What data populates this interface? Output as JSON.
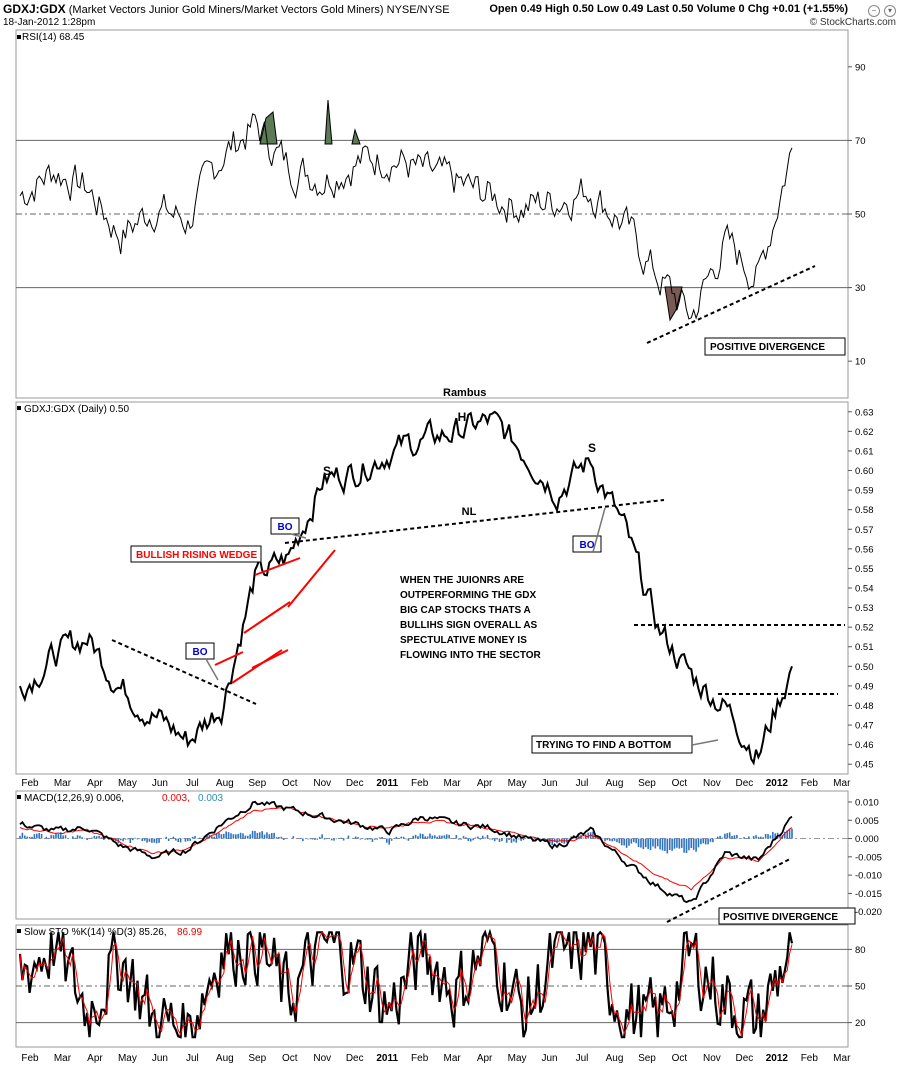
{
  "header": {
    "symbol": "GDXJ:GDX",
    "description": "(Market Vectors Junior Gold Miners/Market Vectors Gold Miners)",
    "exchange": "NYSE/NYSE",
    "date": "18-Jan-2012 1:28pm",
    "quote": "Open 0.49  High 0.50  Low 0.49  Last 0.50  Volume 0  Chg +0.01 (+1.55%)",
    "copyright": "© StockCharts.com"
  },
  "colors": {
    "price": "#000000",
    "signal": "#ff0000",
    "hist": "#2e72c2",
    "overbought": "#5b7a55",
    "oversold": "#7a5a55",
    "annot_red": "#ff0000",
    "annot_blue": "#0000cc"
  },
  "chart_data": [
    {
      "type": "line",
      "title": "RSI(14) 68.45",
      "label": "RSI(14)",
      "last": "68.45",
      "ylim": [
        0,
        100
      ],
      "yticks": [
        "90",
        "70",
        "50",
        "30",
        "10"
      ],
      "reference_lines": [
        70,
        50,
        30
      ],
      "x": [
        "Feb 2010",
        "Mar",
        "Apr",
        "May",
        "Jun",
        "Jul",
        "Aug",
        "Sep",
        "Oct",
        "Nov",
        "Dec",
        "2011",
        "Feb",
        "Mar",
        "Apr",
        "May",
        "Jun",
        "Jul",
        "Aug",
        "Sep",
        "Oct",
        "Nov",
        "Dec",
        "2012"
      ],
      "values": [
        55,
        62,
        57,
        44,
        52,
        48,
        66,
        74,
        63,
        60,
        64,
        66,
        61,
        58,
        55,
        52,
        54,
        57,
        47,
        33,
        22,
        42,
        33,
        68
      ],
      "annotations": [
        {
          "text": "POSITIVE DIVERGENCE",
          "kind": "box"
        }
      ]
    },
    {
      "type": "line",
      "title": "Rambus",
      "label": "GDXJ:GDX (Daily) 0.50",
      "last": "0.50",
      "ylim": [
        0.445,
        0.635
      ],
      "yticks": [
        "0.63",
        "0.62",
        "0.61",
        "0.60",
        "0.59",
        "0.58",
        "0.57",
        "0.56",
        "0.55",
        "0.54",
        "0.53",
        "0.52",
        "0.51",
        "0.50",
        "0.49",
        "0.48",
        "0.47",
        "0.46",
        "0.45"
      ],
      "xticks": [
        "Feb",
        "Mar",
        "Apr",
        "May",
        "Jun",
        "Jul",
        "Aug",
        "Sep",
        "Oct",
        "Nov",
        "Dec",
        "2011",
        "Feb",
        "Mar",
        "Apr",
        "May",
        "Jun",
        "Jul",
        "Aug",
        "Sep",
        "Oct",
        "Nov",
        "Dec",
        "2012",
        "Feb",
        "Mar"
      ],
      "x": [
        "Feb 2010",
        "Mar",
        "Apr",
        "May",
        "Jun",
        "Jul",
        "Aug",
        "Sep",
        "Oct",
        "Nov",
        "Dec",
        "2011",
        "Feb",
        "Mar",
        "Apr",
        "May",
        "Jun",
        "Jul",
        "Aug",
        "Sep",
        "Oct",
        "Nov",
        "Dec",
        "2012"
      ],
      "values": [
        0.49,
        0.505,
        0.515,
        0.49,
        0.475,
        0.462,
        0.48,
        0.545,
        0.555,
        0.595,
        0.6,
        0.61,
        0.615,
        0.62,
        0.625,
        0.61,
        0.59,
        0.605,
        0.57,
        0.52,
        0.495,
        0.48,
        0.455,
        0.5
      ],
      "annotations": [
        {
          "text": "S",
          "kind": "label"
        },
        {
          "text": "H",
          "kind": "label"
        },
        {
          "text": "S",
          "kind": "label"
        },
        {
          "text": "NL",
          "kind": "label"
        },
        {
          "text": "BO",
          "kind": "box"
        },
        {
          "text": "BO",
          "kind": "box"
        },
        {
          "text": "BO",
          "kind": "box"
        },
        {
          "text": "BULLISH RISING WEDGE",
          "kind": "box"
        },
        {
          "text": "WHEN THE JUIONRS ARE\nOUTPERFORMING THE GDX\nBIG CAP STOCKS THATS A\nBULLIHS SIGN OVERALL AS\nSPECTULATIVE MONEY IS\nFLOWING INTO THE SECTOR",
          "kind": "text"
        },
        {
          "text": "TRYING TO FIND A BOTTOM",
          "kind": "box"
        }
      ]
    },
    {
      "type": "line",
      "title": "MACD(12,26,9) 0.006, 0.003, 0.003",
      "label": "MACD(12,26,9) 0.006,",
      "signal_label": "0.003,",
      "hist_label": "0.003",
      "ylim": [
        -0.022,
        0.013
      ],
      "yticks": [
        "0.010",
        "0.005",
        "0.000",
        "-0.005",
        "-0.010",
        "-0.015",
        "-0.020"
      ],
      "x": [
        "Feb 2010",
        "Mar",
        "Apr",
        "May",
        "Jun",
        "Jul",
        "Aug",
        "Sep",
        "Oct",
        "Nov",
        "Dec",
        "2011",
        "Feb",
        "Mar",
        "Apr",
        "May",
        "Jun",
        "Jul",
        "Aug",
        "Sep",
        "Oct",
        "Nov",
        "Dec",
        "2012"
      ],
      "series": [
        {
          "name": "MACD",
          "values": [
            0.004,
            0.002,
            0.003,
            -0.002,
            -0.005,
            -0.003,
            0.004,
            0.01,
            0.008,
            0.006,
            0.004,
            0.002,
            0.006,
            0.004,
            0.003,
            0.0,
            -0.002,
            0.002,
            -0.006,
            -0.013,
            -0.018,
            -0.004,
            -0.006,
            0.006
          ]
        },
        {
          "name": "Signal",
          "values": [
            0.003,
            0.002,
            0.002,
            -0.001,
            -0.004,
            -0.003,
            0.002,
            0.008,
            0.008,
            0.006,
            0.004,
            0.003,
            0.005,
            0.004,
            0.003,
            0.001,
            -0.001,
            0.001,
            -0.004,
            -0.01,
            -0.014,
            -0.005,
            -0.006,
            0.003
          ]
        }
      ],
      "annotations": [
        {
          "text": "POSITIVE DIVERGENCE",
          "kind": "box"
        }
      ]
    },
    {
      "type": "line",
      "title": "Slow STO %K(14) %D(3) 85.26, 86.99",
      "label": "Slow STO %K(14) %D(3) 85.26,",
      "d_label": "86.99",
      "ylim": [
        0,
        100
      ],
      "yticks": [
        "80",
        "50",
        "20"
      ],
      "reference_lines": [
        80,
        50,
        20
      ],
      "x": [
        "Feb 2010",
        "Mar",
        "Apr",
        "May",
        "Jun",
        "Jul",
        "Aug",
        "Sep",
        "Oct",
        "Nov",
        "Dec",
        "2011",
        "Feb",
        "Mar",
        "Apr",
        "May",
        "Jun",
        "Jul",
        "Aug",
        "Sep",
        "Oct",
        "Nov",
        "Dec",
        "2012"
      ],
      "series": [
        {
          "name": "%K",
          "values": [
            60,
            85,
            30,
            75,
            20,
            15,
            80,
            88,
            40,
            85,
            70,
            30,
            80,
            45,
            85,
            25,
            75,
            82,
            30,
            20,
            75,
            40,
            20,
            85
          ]
        },
        {
          "name": "%D",
          "values": [
            58,
            80,
            35,
            70,
            25,
            18,
            75,
            85,
            45,
            80,
            72,
            35,
            75,
            50,
            80,
            30,
            70,
            78,
            35,
            25,
            70,
            45,
            25,
            87
          ]
        }
      ]
    }
  ]
}
